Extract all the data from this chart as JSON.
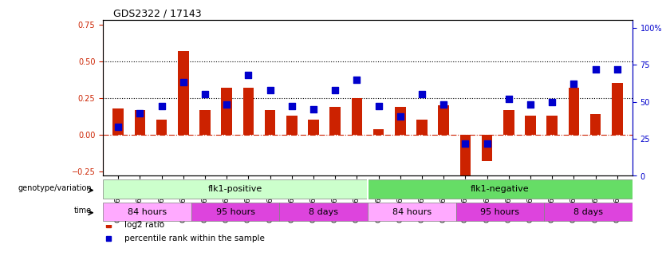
{
  "title": "GDS2322 / 17143",
  "samples": [
    "GSM86370",
    "GSM86371",
    "GSM86372",
    "GSM86373",
    "GSM86362",
    "GSM86363",
    "GSM86364",
    "GSM86365",
    "GSM86354",
    "GSM86355",
    "GSM86356",
    "GSM86357",
    "GSM86374",
    "GSM86375",
    "GSM86376",
    "GSM86377",
    "GSM86366",
    "GSM86367",
    "GSM86368",
    "GSM86369",
    "GSM86358",
    "GSM86359",
    "GSM86360",
    "GSM86361"
  ],
  "log2_ratio": [
    0.18,
    0.17,
    0.1,
    0.57,
    0.17,
    0.32,
    0.32,
    0.17,
    0.13,
    0.1,
    0.19,
    0.25,
    0.04,
    0.19,
    0.1,
    0.2,
    -0.28,
    -0.18,
    0.17,
    0.13,
    0.13,
    0.32,
    0.14,
    0.35
  ],
  "percentile_rank": [
    33,
    42,
    47,
    63,
    55,
    48,
    68,
    58,
    47,
    45,
    58,
    65,
    47,
    40,
    55,
    48,
    22,
    22,
    52,
    48,
    50,
    62,
    72,
    72
  ],
  "bar_color": "#cc2200",
  "dot_color": "#0000cc",
  "ylim_left": [
    -0.28,
    0.78
  ],
  "ylim_right": [
    0,
    105
  ],
  "yticks_left": [
    -0.25,
    0.0,
    0.25,
    0.5,
    0.75
  ],
  "yticks_right": [
    0,
    25,
    50,
    75,
    100
  ],
  "hline_values": [
    0.25,
    0.5
  ],
  "zero_line_color": "#cc2200",
  "hline_color": "#000000",
  "bg_color": "#ffffff",
  "plot_bg_color": "#ffffff",
  "genotype_row": [
    {
      "label": "flk1-positive",
      "start": 0,
      "end": 12,
      "color": "#ccffcc"
    },
    {
      "label": "flk1-negative",
      "start": 12,
      "end": 24,
      "color": "#66dd66"
    }
  ],
  "time_row": [
    {
      "label": "84 hours",
      "start": 0,
      "end": 4,
      "color": "#ffaaff"
    },
    {
      "label": "95 hours",
      "start": 4,
      "end": 8,
      "color": "#ee44ee"
    },
    {
      "label": "8 days",
      "start": 8,
      "end": 12,
      "color": "#ee44ee"
    },
    {
      "label": "84 hours",
      "start": 12,
      "end": 16,
      "color": "#ffaaff"
    },
    {
      "label": "95 hours",
      "start": 16,
      "end": 20,
      "color": "#ee44ee"
    },
    {
      "label": "8 days",
      "start": 20,
      "end": 24,
      "color": "#ee44ee"
    }
  ],
  "legend_items": [
    {
      "label": "log2 ratio",
      "color": "#cc2200"
    },
    {
      "label": "percentile rank within the sample",
      "color": "#0000cc"
    }
  ],
  "bar_width": 0.5,
  "dot_size": 40,
  "dot_marker": "s"
}
